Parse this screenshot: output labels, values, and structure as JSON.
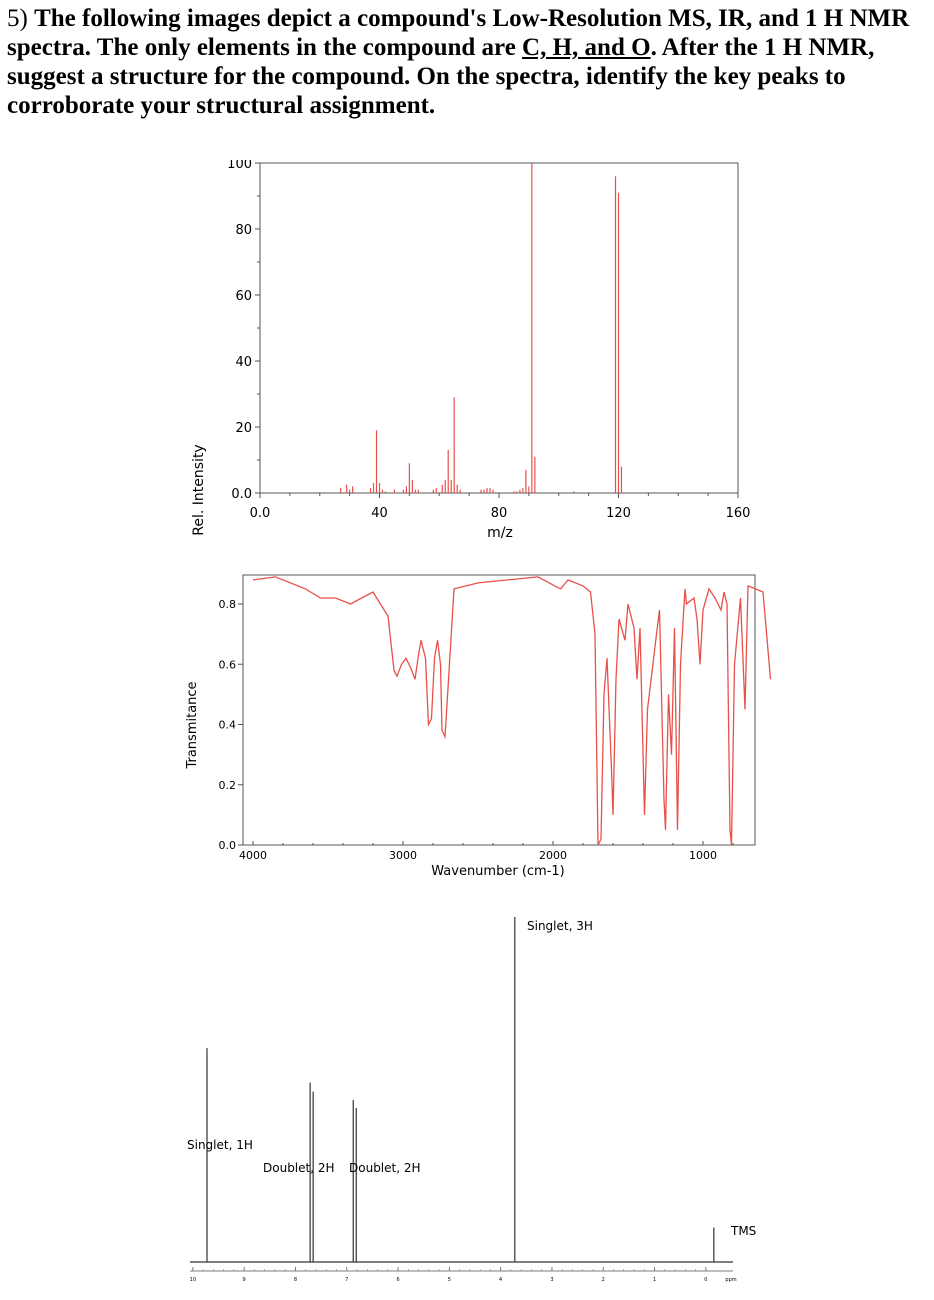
{
  "question": {
    "number": "5)",
    "text_before": "The following images depict a compound's Low-Resolution MS, IR, and 1 H NMR spectra. The only elements in the compound are",
    "elements": "C, H, and O",
    "text_after": ". After the 1 H NMR, suggest a structure for the compound. On the spectra, identify the key peaks to corroborate your structural assignment."
  },
  "colors": {
    "spectrum": "#e8504a",
    "nmr": "#333333",
    "axis": "#555555"
  },
  "chart_data": [
    {
      "type": "bar",
      "name": "ms",
      "xlabel": "m/z",
      "ylabel": "Rel. Intensity",
      "xlim": [
        0,
        160
      ],
      "ylim": [
        0,
        100
      ],
      "x_ticks": [
        "0.0",
        "40",
        "80",
        "120",
        "160"
      ],
      "y_ticks": [
        "0.0",
        "20",
        "40",
        "60",
        "80",
        "100"
      ],
      "peaks": [
        {
          "mz": 27,
          "intensity": 1.5
        },
        {
          "mz": 29,
          "intensity": 2.5
        },
        {
          "mz": 30,
          "intensity": 1
        },
        {
          "mz": 31,
          "intensity": 2
        },
        {
          "mz": 37,
          "intensity": 1.5
        },
        {
          "mz": 38,
          "intensity": 3
        },
        {
          "mz": 39,
          "intensity": 19
        },
        {
          "mz": 40,
          "intensity": 3
        },
        {
          "mz": 41,
          "intensity": 1
        },
        {
          "mz": 42,
          "intensity": 0.5
        },
        {
          "mz": 45,
          "intensity": 1
        },
        {
          "mz": 48,
          "intensity": 1
        },
        {
          "mz": 49,
          "intensity": 2
        },
        {
          "mz": 50,
          "intensity": 9
        },
        {
          "mz": 51,
          "intensity": 4
        },
        {
          "mz": 52,
          "intensity": 1
        },
        {
          "mz": 53,
          "intensity": 1
        },
        {
          "mz": 58,
          "intensity": 1
        },
        {
          "mz": 59,
          "intensity": 1.5
        },
        {
          "mz": 61,
          "intensity": 2.5
        },
        {
          "mz": 62,
          "intensity": 4
        },
        {
          "mz": 63,
          "intensity": 13
        },
        {
          "mz": 64,
          "intensity": 4
        },
        {
          "mz": 65,
          "intensity": 29
        },
        {
          "mz": 66,
          "intensity": 2.5
        },
        {
          "mz": 67,
          "intensity": 1
        },
        {
          "mz": 74,
          "intensity": 1
        },
        {
          "mz": 75,
          "intensity": 1
        },
        {
          "mz": 76,
          "intensity": 1.5
        },
        {
          "mz": 77,
          "intensity": 1.5
        },
        {
          "mz": 78,
          "intensity": 1
        },
        {
          "mz": 85,
          "intensity": 0.5
        },
        {
          "mz": 86,
          "intensity": 0.5
        },
        {
          "mz": 87,
          "intensity": 1
        },
        {
          "mz": 88,
          "intensity": 1.5
        },
        {
          "mz": 89,
          "intensity": 7
        },
        {
          "mz": 90,
          "intensity": 2
        },
        {
          "mz": 91,
          "intensity": 100
        },
        {
          "mz": 92,
          "intensity": 11
        },
        {
          "mz": 105,
          "intensity": 0.5
        },
        {
          "mz": 119,
          "intensity": 96
        },
        {
          "mz": 120,
          "intensity": 91
        },
        {
          "mz": 121,
          "intensity": 8
        }
      ]
    },
    {
      "type": "line",
      "name": "ir",
      "xlabel": "Wavenumber (cm-1)",
      "ylabel": "Transmitance",
      "xlim": [
        4000,
        550
      ],
      "ylim": [
        0,
        0.85
      ],
      "x_ticks": [
        "4000",
        "3000",
        "2000",
        "1000"
      ],
      "y_ticks": [
        "0.0",
        "0.2",
        "0.4",
        "0.6",
        "0.8"
      ],
      "points": [
        [
          4000,
          0.88
        ],
        [
          3850,
          0.89
        ],
        [
          3650,
          0.85
        ],
        [
          3550,
          0.82
        ],
        [
          3450,
          0.82
        ],
        [
          3350,
          0.8
        ],
        [
          3200,
          0.84
        ],
        [
          3100,
          0.76
        ],
        [
          3060,
          0.58
        ],
        [
          3040,
          0.56
        ],
        [
          3010,
          0.6
        ],
        [
          2980,
          0.62
        ],
        [
          2950,
          0.59
        ],
        [
          2920,
          0.55
        ],
        [
          2900,
          0.62
        ],
        [
          2880,
          0.68
        ],
        [
          2850,
          0.62
        ],
        [
          2830,
          0.4
        ],
        [
          2810,
          0.42
        ],
        [
          2790,
          0.62
        ],
        [
          2770,
          0.68
        ],
        [
          2750,
          0.6
        ],
        [
          2740,
          0.38
        ],
        [
          2720,
          0.36
        ],
        [
          2700,
          0.52
        ],
        [
          2660,
          0.85
        ],
        [
          2500,
          0.87
        ],
        [
          2300,
          0.88
        ],
        [
          2100,
          0.89
        ],
        [
          1950,
          0.85
        ],
        [
          1900,
          0.88
        ],
        [
          1800,
          0.86
        ],
        [
          1750,
          0.84
        ],
        [
          1720,
          0.7
        ],
        [
          1700,
          0.0
        ],
        [
          1680,
          0.02
        ],
        [
          1660,
          0.5
        ],
        [
          1640,
          0.62
        ],
        [
          1610,
          0.25
        ],
        [
          1600,
          0.1
        ],
        [
          1580,
          0.55
        ],
        [
          1560,
          0.75
        ],
        [
          1520,
          0.68
        ],
        [
          1500,
          0.8
        ],
        [
          1460,
          0.72
        ],
        [
          1440,
          0.55
        ],
        [
          1420,
          0.72
        ],
        [
          1390,
          0.1
        ],
        [
          1370,
          0.45
        ],
        [
          1310,
          0.7
        ],
        [
          1290,
          0.78
        ],
        [
          1260,
          0.15
        ],
        [
          1250,
          0.05
        ],
        [
          1230,
          0.5
        ],
        [
          1210,
          0.3
        ],
        [
          1190,
          0.72
        ],
        [
          1170,
          0.05
        ],
        [
          1150,
          0.6
        ],
        [
          1120,
          0.85
        ],
        [
          1110,
          0.8
        ],
        [
          1060,
          0.82
        ],
        [
          1040,
          0.75
        ],
        [
          1020,
          0.6
        ],
        [
          1000,
          0.78
        ],
        [
          960,
          0.85
        ],
        [
          920,
          0.82
        ],
        [
          880,
          0.78
        ],
        [
          860,
          0.84
        ],
        [
          840,
          0.8
        ],
        [
          820,
          0.05
        ],
        [
          810,
          0.0
        ],
        [
          790,
          0.6
        ],
        [
          750,
          0.82
        ],
        [
          720,
          0.45
        ],
        [
          700,
          0.86
        ],
        [
          650,
          0.85
        ],
        [
          600,
          0.84
        ],
        [
          550,
          0.55
        ]
      ]
    },
    {
      "type": "line",
      "name": "nmr",
      "xlabel": "ppm",
      "xlim": [
        10,
        0
      ],
      "x_ticks": [
        "10",
        "9",
        "8",
        "7",
        "6",
        "5",
        "4",
        "3",
        "2",
        "1",
        "0"
      ],
      "peaks": [
        {
          "ppm": 9.88,
          "height": 0.62,
          "label": "Singlet, 1H"
        },
        {
          "ppm": 7.84,
          "height": 0.52,
          "label": "Doublet, 2H"
        },
        {
          "ppm": 7.0,
          "height": 0.47,
          "label": "Doublet, 2H"
        },
        {
          "ppm": 3.88,
          "height": 1.0,
          "label": "Singlet, 3H"
        },
        {
          "ppm": 0.0,
          "height": 0.1,
          "label": "TMS"
        }
      ]
    }
  ]
}
